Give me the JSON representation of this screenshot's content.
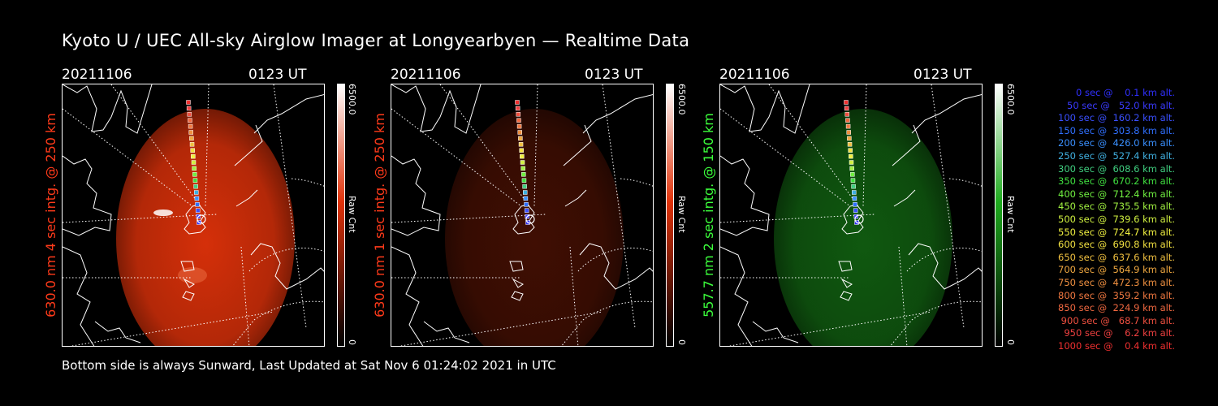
{
  "title": "Kyoto U / UEC All-sky Airglow Imager at Longyearbyen — Realtime Data",
  "panels": [
    {
      "date": "20211106",
      "time": "0123 UT",
      "label": "630.0 nm 4 sec intg. @ 250 km",
      "label_color": "#ff3a1a",
      "cbar_max": "6500.0",
      "cbar_min": "0",
      "cbar_unit": "Raw Cnt",
      "cmap_color": "#e0320a",
      "glow_strength": 1.0
    },
    {
      "date": "20211106",
      "time": "0123 UT",
      "label": "630.0 nm 1 sec intg. @ 250 km",
      "label_color": "#ff3a1a",
      "cbar_max": "6500.0",
      "cbar_min": "0",
      "cbar_unit": "Raw Cnt",
      "cmap_color": "#e0320a",
      "glow_strength": 0.3
    },
    {
      "date": "20211106",
      "time": "0123 UT",
      "label": "557.7 nm 2 sec intg. @ 150 km",
      "label_color": "#3cff3c",
      "cbar_max": "6500.0",
      "cbar_min": "0",
      "cbar_unit": "Raw Cnt",
      "cmap_color": "#1eaa1e",
      "glow_strength": 0.55
    }
  ],
  "legend": [
    {
      "text": "   0 sec @    0.1 km alt.",
      "color": "#3030ff"
    },
    {
      "text": "  50 sec @   52.0 km alt.",
      "color": "#3a3aff"
    },
    {
      "text": " 100 sec @  160.2 km alt.",
      "color": "#3a50ff"
    },
    {
      "text": " 150 sec @  303.8 km alt.",
      "color": "#3070ff"
    },
    {
      "text": " 200 sec @  426.0 km alt.",
      "color": "#3a90ff"
    },
    {
      "text": " 250 sec @  527.4 km alt.",
      "color": "#40b0e0"
    },
    {
      "text": " 300 sec @  608.6 km alt.",
      "color": "#40d080"
    },
    {
      "text": " 350 sec @  670.2 km alt.",
      "color": "#40e040"
    },
    {
      "text": " 400 sec @  712.4 km alt.",
      "color": "#70f040"
    },
    {
      "text": " 450 sec @  735.5 km alt.",
      "color": "#a0f040"
    },
    {
      "text": " 500 sec @  739.6 km alt.",
      "color": "#d0f040"
    },
    {
      "text": " 550 sec @  724.7 km alt.",
      "color": "#f0f040"
    },
    {
      "text": " 600 sec @  690.8 km alt.",
      "color": "#f0e040"
    },
    {
      "text": " 650 sec @  637.6 km alt.",
      "color": "#f0c040"
    },
    {
      "text": " 700 sec @  564.9 km alt.",
      "color": "#f0a840"
    },
    {
      "text": " 750 sec @  472.3 km alt.",
      "color": "#f09040"
    },
    {
      "text": " 800 sec @  359.2 km alt.",
      "color": "#f07840"
    },
    {
      "text": " 850 sec @  224.9 km alt.",
      "color": "#f06840"
    },
    {
      "text": " 900 sec @   68.7 km alt.",
      "color": "#f05040"
    },
    {
      "text": " 950 sec @    6.2 km alt.",
      "color": "#f04040"
    },
    {
      "text": "1000 sec @    0.4 km alt.",
      "color": "#f03030"
    }
  ],
  "footer": "Bottom side is always Sunward, Last Updated at Sat Nov  6 01:24:02 2021 in UTC"
}
